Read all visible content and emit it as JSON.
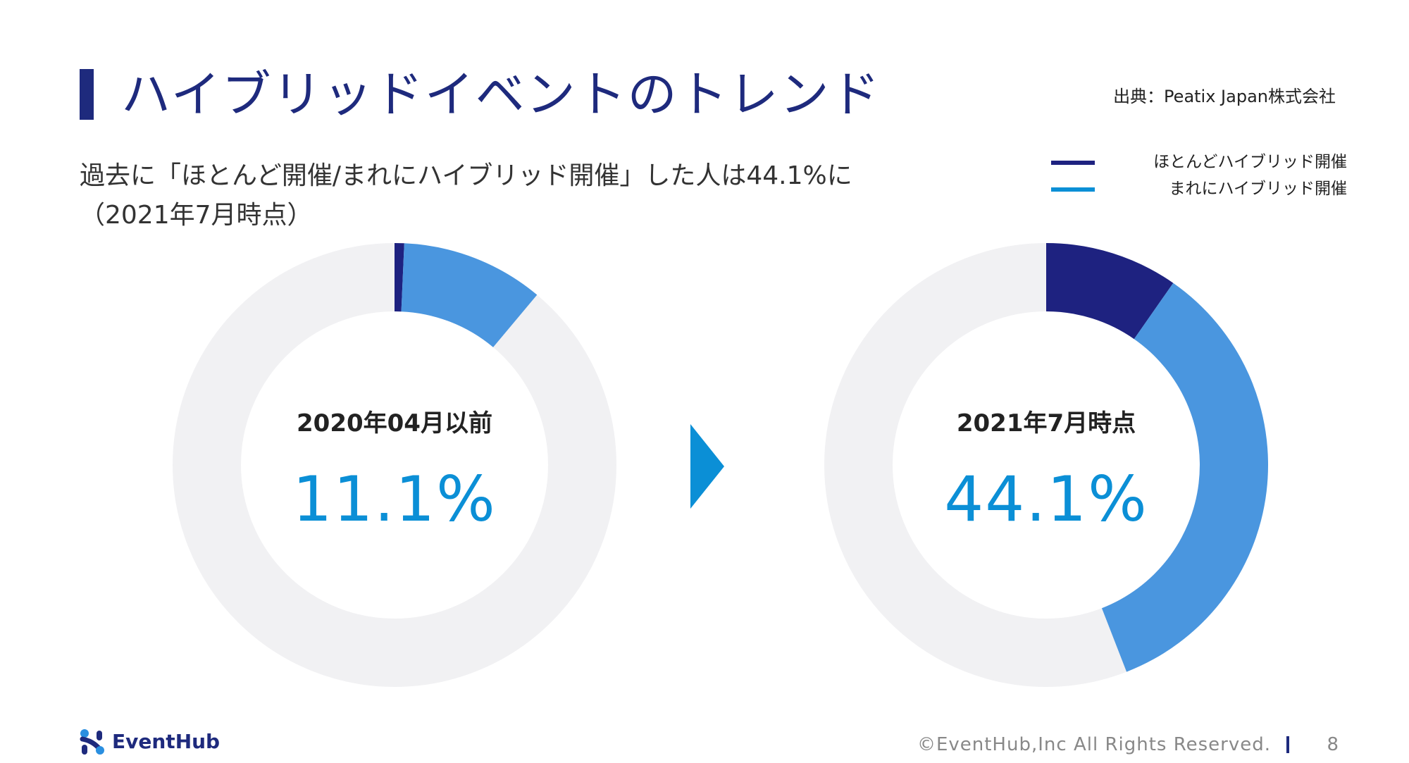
{
  "header": {
    "title": "ハイブリッドイベントのトレンド",
    "source": "出典：Peatix Japan株式会社"
  },
  "subtitle": {
    "line1": "過去に「ほとんど開催/まれにハイブリッド開催」した人は44.1%に",
    "line2": "（2021年7月時点）"
  },
  "colors": {
    "title": "#1e2a7d",
    "mostly": "#1e2280",
    "rarely": "#4a96df",
    "remainder": "#f1f1f3",
    "value": "#0b8fd6",
    "arrow": "#0b8fd6"
  },
  "chart_data": [
    {
      "type": "pie",
      "center_label": "2020年04月以前",
      "center_value": "11.1%",
      "series": [
        {
          "name": "ほとんどハイブリッド開催",
          "value": 0.7
        },
        {
          "name": "まれにハイブリッド開催",
          "value": 10.4
        },
        {
          "name": "",
          "value": 88.9
        }
      ],
      "legend_position": "top-right"
    },
    {
      "type": "pie",
      "center_label": "2021年7月時点",
      "center_value": "44.1%",
      "series": [
        {
          "name": "ほとんどハイブリッド開催",
          "value": 9.7
        },
        {
          "name": "まれにハイブリッド開催",
          "value": 34.4
        },
        {
          "name": "",
          "value": 55.9
        }
      ],
      "legend_position": "top-right"
    }
  ],
  "legend": [
    {
      "label": "ほとんどハイブリッド開催",
      "color": "#1e2280"
    },
    {
      "label": "まれにハイブリッド開催",
      "color": "#0b8fd6"
    }
  ],
  "footer": {
    "logo_text": "EventHub",
    "copyright": "©EventHub,Inc All Rights Reserved.",
    "page": "8"
  }
}
